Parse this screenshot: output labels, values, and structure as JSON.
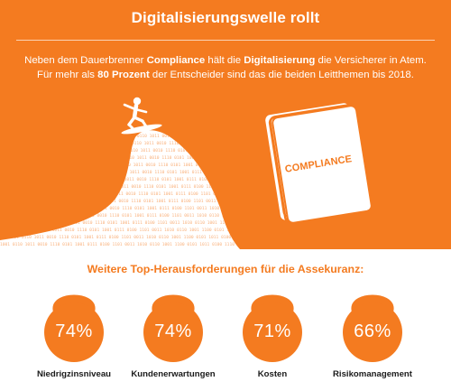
{
  "header": {
    "title": "Digitalisierungswelle rollt"
  },
  "intro": {
    "part1": "Neben dem Dauerbrenner ",
    "bold1": "Compliance",
    "part2": " hält die ",
    "bold2": "Digitalisierung",
    "part3": " die Versicherer in Atem.",
    "part4": "Für mehr als ",
    "bold3": "80 Prozent",
    "part5": " der Entscheider sind das die beiden Leitthemen bis 2018."
  },
  "illustration": {
    "book_label": "COMPLIANCE",
    "binary_text": "1001 0110 1011 0010 1110 0101 1001 0111 0100 1101 0011 1010 0110 1001 1100 0101 1011 0100 1110 0010 1001 0111",
    "icons": [
      "surfer-icon",
      "book-icon"
    ]
  },
  "challenges": {
    "heading": "Weitere Top-Herausforderungen für die Assekuranz:",
    "items": [
      {
        "percent": "74%",
        "label": "Niedrigzinsniveau",
        "value": 74
      },
      {
        "percent": "74%",
        "label": "Kundenerwartungen",
        "value": 74
      },
      {
        "percent": "71%",
        "label": "Kosten",
        "value": 71
      },
      {
        "percent": "66%",
        "label": "Risikomanagement",
        "value": 66
      }
    ]
  },
  "colors": {
    "accent": "#f47b20",
    "background": "#ffffff",
    "text": "#1a1a1a"
  }
}
